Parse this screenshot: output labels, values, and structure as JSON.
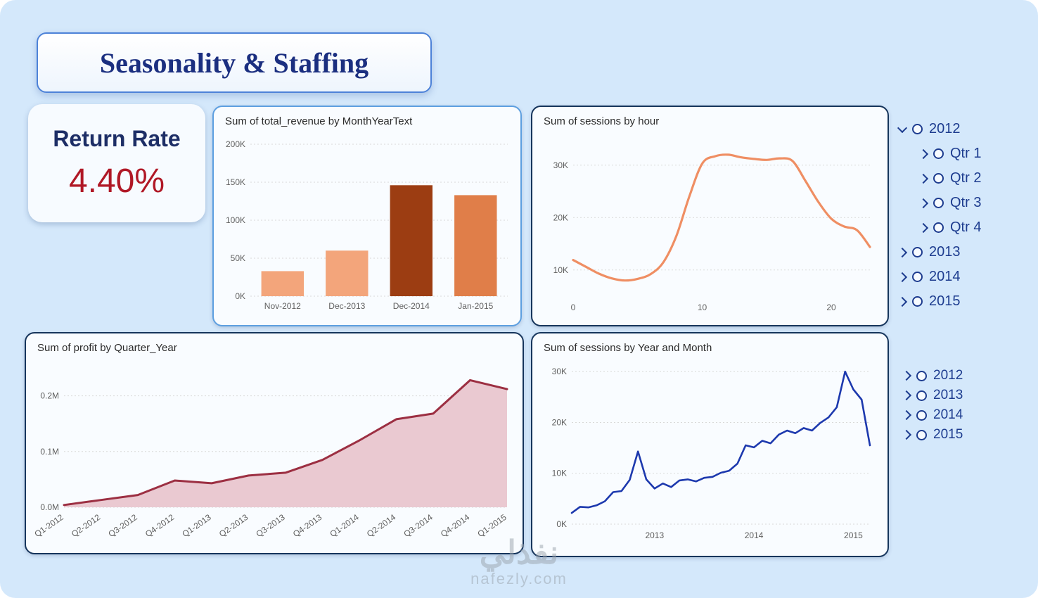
{
  "page": {
    "title": "Seasonality & Staffing"
  },
  "kpi": {
    "label": "Return Rate",
    "value": "4.40%"
  },
  "watermark": {
    "line1": "نفذلي",
    "line2": "nafezly.com"
  },
  "colors": {
    "background": "#d4e8fb",
    "card_border": "#16355c",
    "revenue_card_border": "#5d9fe0",
    "title_navy": "#1b2f80",
    "kpi_red": "#b01826",
    "slicer_blue": "#1d3c8f"
  },
  "chart_data": [
    {
      "id": "revenue-bar",
      "type": "bar",
      "title": "Sum of total_revenue by MonthYearText",
      "categories": [
        "Nov-2012",
        "Dec-2013",
        "Dec-2014",
        "Jan-2015"
      ],
      "values": [
        33000,
        60000,
        146000,
        133000
      ],
      "bar_colors": [
        "#f3a57b",
        "#f3a57b",
        "#9c3d12",
        "#e07e49"
      ],
      "ylim": [
        0,
        200000
      ],
      "yticks": [
        0,
        50000,
        100000,
        150000,
        200000
      ],
      "ytick_labels": [
        "0K",
        "50K",
        "100K",
        "150K",
        "200K"
      ],
      "xlabel": "",
      "ylabel": "",
      "grid": true,
      "legend": "none"
    },
    {
      "id": "sessions-hour",
      "type": "line",
      "title": "Sum of sessions by hour",
      "x": [
        0,
        1,
        2,
        3,
        4,
        5,
        6,
        7,
        8,
        9,
        10,
        11,
        12,
        13,
        14,
        15,
        16,
        17,
        18,
        19,
        20,
        21,
        22,
        23
      ],
      "values": [
        11900,
        10600,
        9300,
        8400,
        8000,
        8300,
        9200,
        11500,
        16500,
        24000,
        30300,
        31700,
        32000,
        31500,
        31200,
        31000,
        31300,
        30800,
        27000,
        23000,
        19800,
        18300,
        17600,
        14400
      ],
      "color": "#ef8e63",
      "ylim": [
        5000,
        34000
      ],
      "yticks": [
        10000,
        20000,
        30000
      ],
      "ytick_labels": [
        "10K",
        "20K",
        "30K"
      ],
      "xticks": [
        0,
        10,
        20
      ],
      "xlabel": "",
      "ylabel": "",
      "grid": true,
      "legend": "none"
    },
    {
      "id": "profit-area",
      "type": "area",
      "title": "Sum of profit by Quarter_Year",
      "categories": [
        "Q1-2012",
        "Q2-2012",
        "Q3-2012",
        "Q4-2012",
        "Q1-2013",
        "Q2-2013",
        "Q3-2013",
        "Q4-2013",
        "Q1-2014",
        "Q2-2014",
        "Q3-2014",
        "Q4-2014",
        "Q1-2015"
      ],
      "values": [
        0.004,
        0.013,
        0.022,
        0.048,
        0.043,
        0.057,
        0.062,
        0.085,
        0.12,
        0.158,
        0.168,
        0.228,
        0.212
      ],
      "line_color": "#9c2f42",
      "fill_color": "#eac9d1",
      "ylim": [
        0,
        0.25
      ],
      "yticks": [
        0,
        0.1,
        0.2
      ],
      "ytick_labels": [
        "0.0M",
        "0.1M",
        "0.2M"
      ],
      "xlabel": "",
      "ylabel": "",
      "grid": true,
      "legend": "none"
    },
    {
      "id": "sessions-month",
      "type": "line",
      "title": "Sum of sessions by Year and Month",
      "values": [
        2200,
        3400,
        3300,
        3700,
        4500,
        6300,
        6500,
        8700,
        14300,
        8800,
        7000,
        8000,
        7300,
        8600,
        8800,
        8400,
        9100,
        9300,
        10100,
        10500,
        11900,
        15500,
        15100,
        16400,
        15900,
        17600,
        18400,
        17900,
        18900,
        18400,
        19900,
        21000,
        23000,
        30000,
        26500,
        24500,
        15500
      ],
      "color": "#1d39ae",
      "ylim": [
        0,
        31000
      ],
      "yticks": [
        0,
        10000,
        20000,
        30000
      ],
      "ytick_labels": [
        "0K",
        "10K",
        "20K",
        "30K"
      ],
      "xtick_positions": [
        10,
        22,
        34
      ],
      "xtick_labels": [
        "2013",
        "2014",
        "2015"
      ],
      "xlabel": "",
      "ylabel": "",
      "grid": true,
      "legend": "none"
    }
  ],
  "slicers": {
    "slicer1": {
      "items": [
        {
          "label": "2012",
          "chevron": "down",
          "indent": 0
        },
        {
          "label": "Qtr 1",
          "chevron": "right",
          "indent": 1
        },
        {
          "label": "Qtr 2",
          "chevron": "right",
          "indent": 1
        },
        {
          "label": "Qtr 3",
          "chevron": "right",
          "indent": 1
        },
        {
          "label": "Qtr 4",
          "chevron": "right",
          "indent": 1
        },
        {
          "label": "2013",
          "chevron": "right",
          "indent": 0
        },
        {
          "label": "2014",
          "chevron": "right",
          "indent": 0
        },
        {
          "label": "2015",
          "chevron": "right",
          "indent": 0
        }
      ]
    },
    "slicer2": {
      "items": [
        {
          "label": "2012",
          "chevron": "right",
          "indent": 0
        },
        {
          "label": "2013",
          "chevron": "right",
          "indent": 0
        },
        {
          "label": "2014",
          "chevron": "right",
          "indent": 0
        },
        {
          "label": "2015",
          "chevron": "right",
          "indent": 0
        }
      ]
    }
  }
}
